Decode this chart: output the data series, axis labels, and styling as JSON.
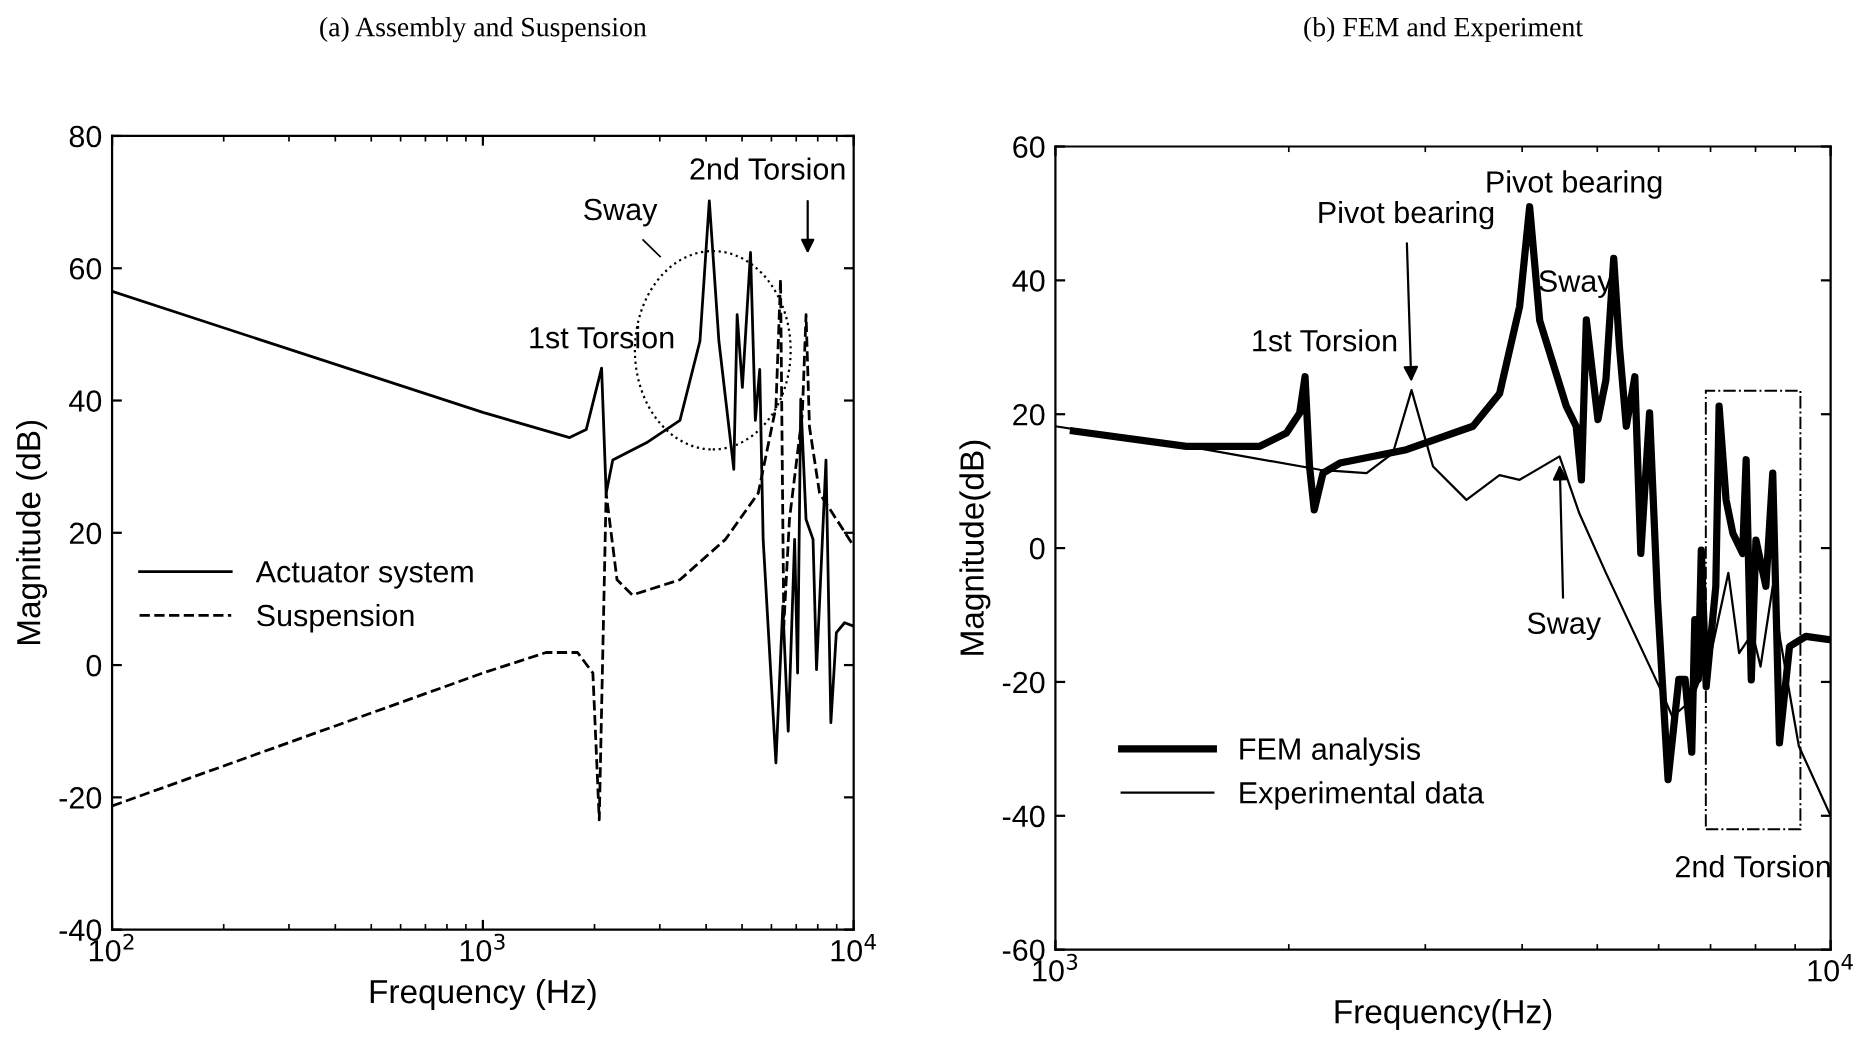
{
  "chart_data": [
    {
      "type": "line",
      "title": "(a) Assembly and Suspension",
      "xlabel": "Frequency (Hz)",
      "ylabel": "Magnitude (dB)",
      "log": "x",
      "xlim": [
        100,
        10000
      ],
      "xticks": [
        {
          "value": 100,
          "label": "10$^{2}$"
        },
        {
          "value": 1000,
          "label": "10$^{3}$"
        },
        {
          "value": 10000,
          "label": "10$^{4}$"
        }
      ],
      "ylim": [
        -40,
        80
      ],
      "yticks": [
        -40,
        -20,
        0,
        20,
        40,
        60,
        80
      ],
      "grid": false,
      "legend": "center left",
      "series": [
        {
          "name": "Actuator system",
          "color": "#000000",
          "line_style": "solid",
          "x": [
            100,
            1000,
            1714,
            1900,
            2090,
            2150,
            2240,
            2760,
            3400,
            3850,
            4080,
            4330,
            4750,
            4850,
            5010,
            5270,
            5430,
            5580,
            5700,
            6170,
            6440,
            6660,
            6930,
            7060,
            7200,
            7440,
            7770,
            7940,
            8420,
            8680,
            8980,
            9450,
            10000
          ],
          "values": [
            56.5,
            38.2,
            34.4,
            35.6,
            44.9,
            26,
            31,
            33.6,
            37,
            49,
            70.2,
            49,
            29.6,
            53,
            42,
            62.4,
            37,
            44.7,
            19,
            -14.8,
            8.9,
            -10,
            19,
            -1.2,
            40.2,
            22,
            19,
            -0.7,
            31,
            -8.7,
            4.9,
            6.4,
            5.9
          ]
        },
        {
          "name": "Suspension",
          "color": "#000000",
          "line_style": "dashed",
          "x": [
            100,
            1000,
            1480,
            1800,
            1980,
            2060,
            2150,
            2300,
            2530,
            3400,
            4510,
            5530,
            6170,
            6350,
            6480,
            6710,
            7270,
            7440,
            7600,
            8090,
            10000
          ],
          "values": [
            -21.3,
            -1.2,
            1.9,
            1.9,
            -1.2,
            -23.4,
            26,
            12.9,
            10.6,
            12.9,
            19,
            26,
            39,
            58.3,
            5.9,
            22,
            38,
            53,
            36,
            26,
            18
          ]
        }
      ],
      "annotations": [
        {
          "text": "1st Torsion",
          "x": 2090,
          "y": 44.9
        },
        "Sway",
        "2nd Torsion"
      ]
    },
    {
      "type": "line",
      "title": "(b) FEM and Experiment",
      "xlabel": "Frequency(Hz)",
      "ylabel": "Magnitude(dB)",
      "log": "x",
      "xlim": [
        1000,
        10000
      ],
      "xticks": [
        {
          "value": 1000,
          "label": "10$^{3}$"
        },
        {
          "value": 10000,
          "label": "10$^{4}$"
        }
      ],
      "ylim": [
        -60,
        60
      ],
      "yticks": [
        -60,
        -40,
        -20,
        0,
        20,
        40,
        60
      ],
      "grid": false,
      "legend": "lower left",
      "series": [
        {
          "name": "FEM analysis",
          "color": "#000000",
          "line_style": "solid",
          "x": [
            1055,
            1476,
            1835,
            1986,
            2066,
            2099,
            2127,
            2157,
            2214,
            2328,
            2836,
            3456,
            3741,
            3970,
            4090,
            4214,
            4560,
            4696,
            4770,
            4840,
            4930,
            5010,
            5130,
            5250,
            5340,
            5450,
            5590,
            5690,
            5840,
            5980,
            6170,
            6370,
            6490,
            6620,
            6680,
            6750,
            6810,
            6910,
            7110,
            7180,
            7330,
            7480,
            7700,
            7780,
            7900,
            8010,
            8250,
            8420,
            8590,
            8850,
            9290,
            10000
          ],
          "values": [
            17.5,
            15.2,
            15.2,
            17.2,
            20.2,
            25.6,
            12.2,
            5.7,
            11.2,
            12.7,
            14.7,
            18.2,
            23.1,
            36.1,
            51,
            34,
            21.2,
            18.2,
            10.2,
            34.1,
            26.1,
            19.2,
            25.1,
            43.3,
            30.1,
            18.2,
            25.6,
            -0.8,
            20.2,
            -7.7,
            -34.6,
            -19.6,
            -19.6,
            -30.5,
            -10.7,
            -19.6,
            -0.3,
            -20.7,
            -5.7,
            21.2,
            7.2,
            2.2,
            -0.8,
            13.2,
            -19.7,
            1.2,
            -5.7,
            11.2,
            -29.1,
            -14.7,
            -13.2,
            -13.7
          ]
        },
        {
          "name": "Experimental data",
          "color": "#000000",
          "line_style": "solid",
          "x": [
            1000,
            1566,
            2194,
            2520,
            2725,
            2880,
            3070,
            3390,
            3740,
            3970,
            4470,
            4740,
            5130,
            6010,
            6250,
            6620,
            7040,
            7380,
            7620,
            7930,
            8120,
            8420,
            8610,
            9100,
            10000
          ],
          "values": [
            18.2,
            14.7,
            11.7,
            11.2,
            14.2,
            23.6,
            12.2,
            7.2,
            10.9,
            10.2,
            13.7,
            5.2,
            -3.7,
            -20.7,
            -25.2,
            -22.7,
            -14.7,
            -3.7,
            -15.7,
            -12.7,
            -17.7,
            -5.7,
            -13.7,
            -29.6,
            -40
          ]
        }
      ],
      "annotations": [
        {
          "text": "1st Torsion",
          "x": 2099,
          "y": 25.6
        },
        {
          "text": "Pivot bearing",
          "x": 2880,
          "y": 23.6
        },
        {
          "text": "Pivot bearing",
          "x": 4090,
          "y": 51
        },
        {
          "text": "Sway",
          "x": 4840,
          "y": 34.1
        },
        {
          "text": "Sway",
          "x": 4470,
          "y": 13.7
        },
        "2nd Torsion"
      ]
    }
  ]
}
